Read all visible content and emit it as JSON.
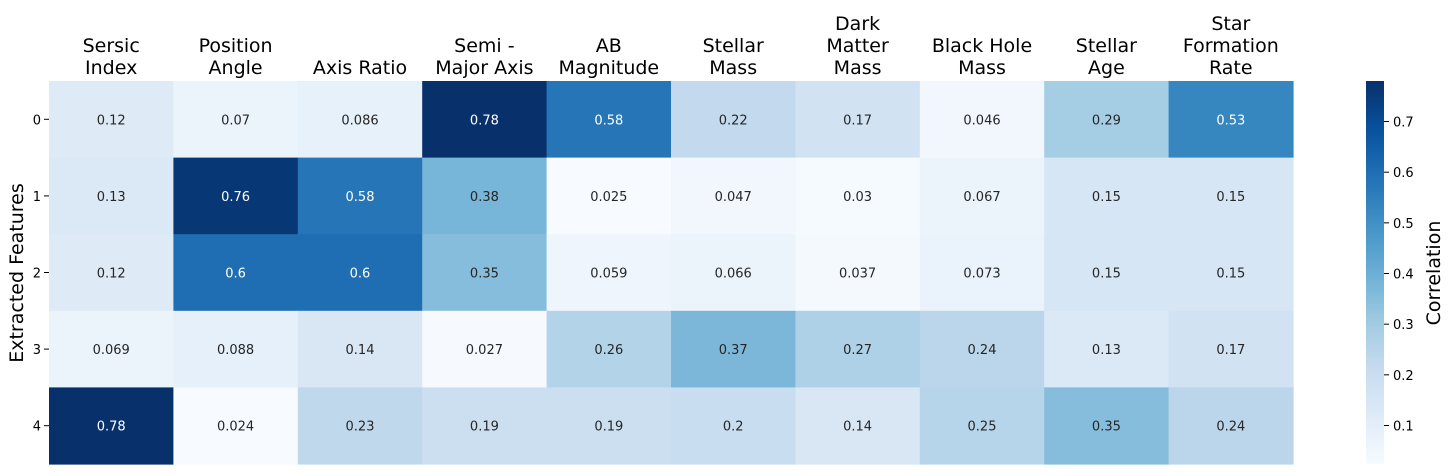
{
  "chart_data": {
    "type": "heatmap",
    "columns": [
      [
        "Sersic",
        "Index"
      ],
      [
        "Position",
        "Angle"
      ],
      [
        "Axis Ratio"
      ],
      [
        "Semi -",
        "Major Axis"
      ],
      [
        "AB",
        "Magnitude"
      ],
      [
        "Stellar",
        "Mass"
      ],
      [
        "Dark",
        "Matter",
        "Mass"
      ],
      [
        "Black Hole",
        "Mass"
      ],
      [
        "Stellar",
        "Age"
      ],
      [
        "Star",
        "Formation",
        "Rate"
      ]
    ],
    "rows": [
      "0",
      "1",
      "2",
      "3",
      "4"
    ],
    "values": [
      [
        0.12,
        0.07,
        0.086,
        0.78,
        0.58,
        0.22,
        0.17,
        0.046,
        0.29,
        0.53
      ],
      [
        0.13,
        0.76,
        0.58,
        0.38,
        0.025,
        0.047,
        0.03,
        0.067,
        0.15,
        0.15
      ],
      [
        0.12,
        0.6,
        0.6,
        0.35,
        0.059,
        0.066,
        0.037,
        0.073,
        0.15,
        0.15
      ],
      [
        0.069,
        0.088,
        0.14,
        0.027,
        0.26,
        0.37,
        0.27,
        0.24,
        0.13,
        0.17
      ],
      [
        0.78,
        0.024,
        0.23,
        0.19,
        0.19,
        0.2,
        0.14,
        0.25,
        0.35,
        0.24
      ]
    ],
    "cell_labels": [
      [
        "0.12",
        "0.07",
        "0.086",
        "0.78",
        "0.58",
        "0.22",
        "0.17",
        "0.046",
        "0.29",
        "0.53"
      ],
      [
        "0.13",
        "0.76",
        "0.58",
        "0.38",
        "0.025",
        "0.047",
        "0.03",
        "0.067",
        "0.15",
        "0.15"
      ],
      [
        "0.12",
        "0.6",
        "0.6",
        "0.35",
        "0.059",
        "0.066",
        "0.037",
        "0.073",
        "0.15",
        "0.15"
      ],
      [
        "0.069",
        "0.088",
        "0.14",
        "0.027",
        "0.26",
        "0.37",
        "0.27",
        "0.24",
        "0.13",
        "0.17"
      ],
      [
        "0.78",
        "0.024",
        "0.23",
        "0.19",
        "0.19",
        "0.2",
        "0.14",
        "0.25",
        "0.35",
        "0.24"
      ]
    ],
    "ylabel": "Extracted Features",
    "colorbar_label": "Correlation",
    "colorbar_ticks": [
      0.1,
      0.2,
      0.3,
      0.4,
      0.5,
      0.6,
      0.7
    ],
    "colorbar_tick_labels": [
      "0.1",
      "0.2",
      "0.3",
      "0.4",
      "0.5",
      "0.6",
      "0.7"
    ],
    "vmin": 0.024,
    "vmax": 0.78,
    "colormap": "Blues",
    "colormap_stops": [
      "#f7fbff",
      "#deebf7",
      "#c6dbef",
      "#9ecae1",
      "#6baed6",
      "#4292c6",
      "#2171b5",
      "#08519c",
      "#08306b"
    ],
    "grid": false,
    "column_labels_position": "top"
  }
}
